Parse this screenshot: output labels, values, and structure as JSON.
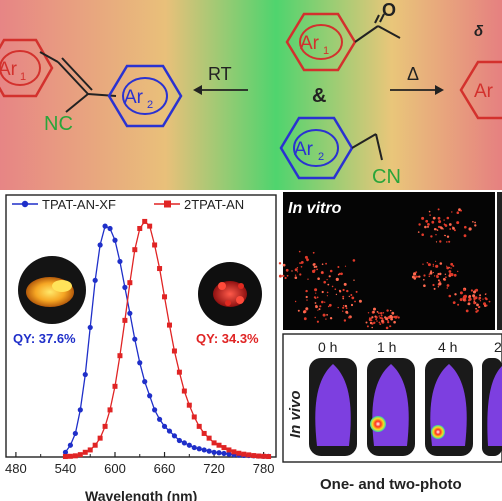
{
  "reaction": {
    "ar1": "Ar",
    "ar1_sub": "1",
    "ar2": "Ar",
    "ar2_sub": "2",
    "oxygen": "O",
    "nc_label": "NC",
    "cn_label": "CN",
    "rt_label": "RT",
    "ampersand": "&",
    "heat_label": "Δ",
    "delta_fragment": "δ",
    "right_partial": "Ar"
  },
  "plot_labels": {
    "qy_left": "QY: 37.6%",
    "qy_right": "QY: 34.3%"
  },
  "imaging": {
    "in_vitro": "In vitro",
    "in_vivo": "In vivo",
    "times": [
      "0 h",
      "1 h",
      "4 h",
      "2"
    ],
    "caption": "One- and two-photo"
  },
  "colors": {
    "left_bg": "#e07b7b",
    "mid_bg": "#3cd06a",
    "ar1_ring": "#d3312d",
    "ar2_ring": "#2a32d1",
    "cn_green": "#2aa53a",
    "series1": "#1f2fc9",
    "series2": "#e02424"
  },
  "chart_data": {
    "type": "line",
    "xlabel": "Wavelength (nm)",
    "x_ticks": [
      480,
      540,
      600,
      660,
      720,
      780
    ],
    "xlim": [
      468,
      795
    ],
    "ylim": [
      0,
      1.04
    ],
    "legend_position": "top",
    "series": [
      {
        "name": "TPAT-AN-XF",
        "x": [
          540,
          546,
          552,
          558,
          564,
          570,
          576,
          582,
          588,
          594,
          600,
          606,
          612,
          618,
          624,
          630,
          636,
          642,
          648,
          654,
          660,
          666,
          672,
          678,
          684,
          690,
          696,
          702,
          708,
          714,
          720,
          726,
          732,
          738,
          744,
          750,
          756,
          762,
          768,
          774,
          780,
          786
        ],
        "values": [
          0.02,
          0.05,
          0.1,
          0.2,
          0.35,
          0.55,
          0.75,
          0.9,
          0.98,
          0.97,
          0.92,
          0.83,
          0.72,
          0.61,
          0.5,
          0.4,
          0.32,
          0.26,
          0.2,
          0.16,
          0.13,
          0.11,
          0.09,
          0.07,
          0.06,
          0.05,
          0.04,
          0.035,
          0.03,
          0.025,
          0.02,
          0.018,
          0.015,
          0.012,
          0.01,
          0.008,
          0.007,
          0.006,
          0.005,
          0.004,
          0.003,
          0.003
        ]
      },
      {
        "name": "2TPAT-AN",
        "x": [
          540,
          546,
          552,
          558,
          564,
          570,
          576,
          582,
          588,
          594,
          600,
          606,
          612,
          618,
          624,
          630,
          636,
          642,
          648,
          654,
          660,
          666,
          672,
          678,
          684,
          690,
          696,
          702,
          708,
          714,
          720,
          726,
          732,
          738,
          744,
          750,
          756,
          762,
          768,
          774,
          780,
          786
        ],
        "values": [
          0.002,
          0.003,
          0.005,
          0.01,
          0.02,
          0.03,
          0.05,
          0.08,
          0.13,
          0.2,
          0.3,
          0.43,
          0.58,
          0.74,
          0.88,
          0.97,
          1.0,
          0.98,
          0.9,
          0.8,
          0.68,
          0.56,
          0.45,
          0.36,
          0.28,
          0.22,
          0.17,
          0.13,
          0.1,
          0.08,
          0.06,
          0.05,
          0.04,
          0.03,
          0.022,
          0.016,
          0.012,
          0.009,
          0.006,
          0.004,
          0.003,
          0.002
        ]
      }
    ]
  }
}
